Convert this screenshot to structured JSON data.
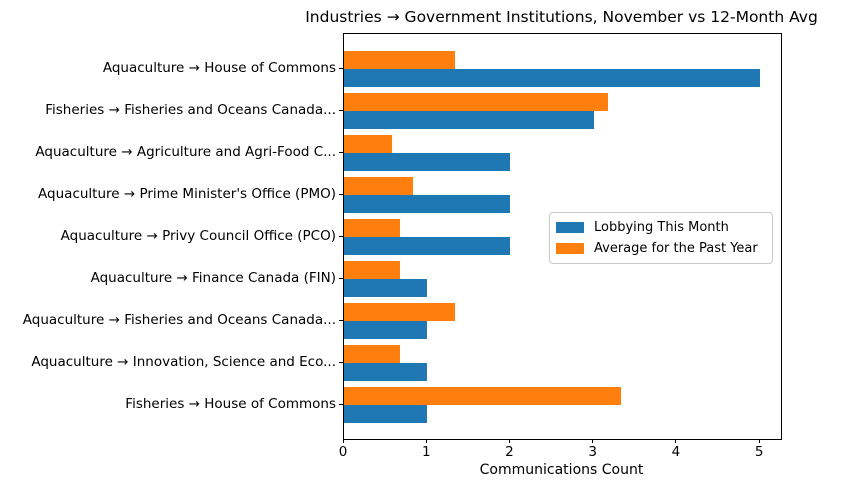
{
  "chart_data": {
    "type": "bar",
    "orientation": "horizontal",
    "title": "Industries → Government Institutions, November vs 12-Month Avg",
    "xlabel": "Communications Count",
    "ylabel": "",
    "xlim": [
      0,
      5.25
    ],
    "x_ticks": [
      0,
      1,
      2,
      3,
      4,
      5
    ],
    "grid": false,
    "legend_position": "center right",
    "categories": [
      "Aquaculture → House of Commons",
      "Fisheries → Fisheries and Oceans Canada...",
      "Aquaculture → Agriculture and Agri-Food C...",
      "Aquaculture → Prime Minister's Office (PMO)",
      "Aquaculture → Privy Council Office (PCO)",
      "Aquaculture → Finance Canada (FIN)",
      "Aquaculture → Fisheries and Oceans Canada...",
      "Aquaculture → Innovation, Science and Eco...",
      "Fisheries → House of Commons"
    ],
    "series": [
      {
        "name": "Lobbying This Month",
        "color": "#1f77b4",
        "values": [
          5,
          3,
          2,
          2,
          2,
          1,
          1,
          1,
          1
        ]
      },
      {
        "name": "Average for the Past Year",
        "color": "#ff7f0e",
        "values": [
          1.33,
          3.17,
          0.58,
          0.83,
          0.67,
          0.67,
          1.33,
          0.67,
          3.33
        ]
      }
    ]
  }
}
